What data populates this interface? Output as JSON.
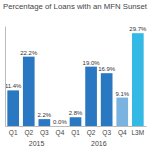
{
  "chart_data": {
    "type": "bar",
    "title": "Percentage of Loans with an MFN Sunset",
    "categories": [
      "Q1",
      "Q2",
      "Q3",
      "Q4",
      "Q1",
      "Q2",
      "Q3",
      "Q4",
      "L3M"
    ],
    "group_labels": [
      "2015",
      "2015",
      "2015",
      "2015",
      "2016",
      "2016",
      "2016",
      "2016",
      null
    ],
    "values": [
      11.4,
      22.2,
      2.2,
      0.0,
      2.8,
      19.0,
      16.9,
      9.1,
      29.7
    ],
    "value_labels": [
      "11.4%",
      "22.2%",
      "2.2%",
      "0.0%",
      "2.8%",
      "19.0%",
      "16.9%",
      "9.1%",
      "29.7%"
    ],
    "colors": [
      "#2b78c2",
      "#2b78c2",
      "#2b78c2",
      "#2b78c2",
      "#2b78c2",
      "#2b78c2",
      "#2b78c2",
      "#7ab3e0",
      "#33b9e3"
    ],
    "ylim": [
      0,
      32
    ],
    "data_labels": true,
    "tick_labels": "x",
    "grid": false
  }
}
